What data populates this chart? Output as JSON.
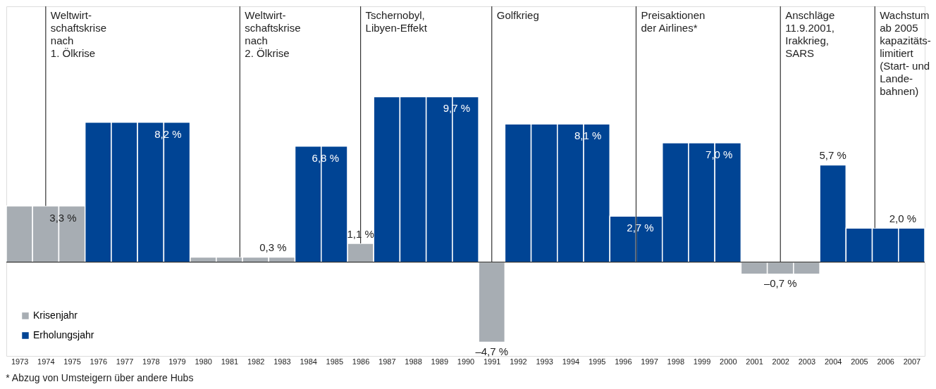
{
  "chart_data": {
    "type": "bar",
    "xlim": [
      1972.5,
      2007.5
    ],
    "xticks": [
      1973,
      1974,
      1975,
      1976,
      1977,
      1978,
      1979,
      1980,
      1981,
      1982,
      1983,
      1984,
      1985,
      1986,
      1987,
      1988,
      1989,
      1990,
      1991,
      1992,
      1993,
      1994,
      1995,
      1996,
      1997,
      1998,
      1999,
      2000,
      2001,
      2002,
      2003,
      2004,
      2005,
      2006,
      2007
    ],
    "ylim": [
      -5.5,
      15
    ],
    "tick_labels": "x",
    "grid": false,
    "legend": "bottom left",
    "series": [
      {
        "name": "Krisenjahr",
        "color": "#a7adb3",
        "x": [
          1973,
          1974,
          1975,
          1980,
          1981,
          1982,
          1983,
          1986,
          1991,
          2001,
          2002,
          2003
        ],
        "values": [
          3.3,
          3.3,
          3.3,
          0.3,
          0.3,
          0.3,
          0.3,
          1.1,
          -4.7,
          -0.7,
          -0.7,
          -0.7
        ],
        "value_labels": [
          null,
          "3,3 %",
          null,
          null,
          null,
          "0,3 %",
          null,
          "1,1 %",
          "–4,7 %",
          null,
          "–0,7 %",
          null
        ]
      },
      {
        "name": "Erholungsjahr",
        "color": "#004494",
        "x": [
          1976,
          1977,
          1978,
          1979,
          1984,
          1985,
          1987,
          1988,
          1989,
          1990,
          1992,
          1993,
          1994,
          1995,
          1996,
          1997,
          1998,
          1999,
          2000,
          2004,
          2005,
          2006,
          2007
        ],
        "values": [
          8.2,
          8.2,
          8.2,
          8.2,
          6.8,
          6.8,
          9.7,
          9.7,
          9.7,
          9.7,
          8.1,
          8.1,
          8.1,
          8.1,
          2.7,
          2.7,
          7.0,
          7.0,
          7.0,
          5.7,
          2.0,
          2.0,
          2.0
        ],
        "value_labels": [
          null,
          null,
          "8,2 %",
          null,
          "6,8 %",
          null,
          null,
          null,
          "9,7 %",
          null,
          null,
          null,
          "8,1 %",
          null,
          "2,7 %",
          null,
          null,
          "7,0 %",
          null,
          "5,7 %",
          null,
          "2,0 %",
          null
        ]
      }
    ],
    "ref_lines": [
      {
        "axis": "x",
        "value": 1974,
        "label": "Weltwirt-\nschaftskrise\nnach\n1. Ölkrise",
        "color": "#333333"
      },
      {
        "axis": "x",
        "value": 1981.4,
        "label": "Weltwirt-\nschaftskrise\nnach\n2. Ölkrise",
        "color": "#333333"
      },
      {
        "axis": "x",
        "value": 1986,
        "label": "Tschernobyl,\nLibyen-Effekt",
        "color": "#333333"
      },
      {
        "axis": "x",
        "value": 1991,
        "label": "Golfkrieg",
        "color": "#333333"
      },
      {
        "axis": "x",
        "value": 1996.5,
        "label": "Preisaktionen\nder Airlines*",
        "color": "#333333"
      },
      {
        "axis": "x",
        "value": 2002,
        "label": "Anschläge\n11.9.2001,\nIrakkrieg,\nSARS",
        "color": "#333333"
      },
      {
        "axis": "x",
        "value": 2005.6,
        "label": "Wachstum\nab 2005\nkapazitäts-\nlimitiert\n(Start- und\nLande-\nbahnen)",
        "color": "#333333"
      }
    ],
    "annotations": [
      "* Abzug von Umsteigern über andere Hubs"
    ]
  }
}
